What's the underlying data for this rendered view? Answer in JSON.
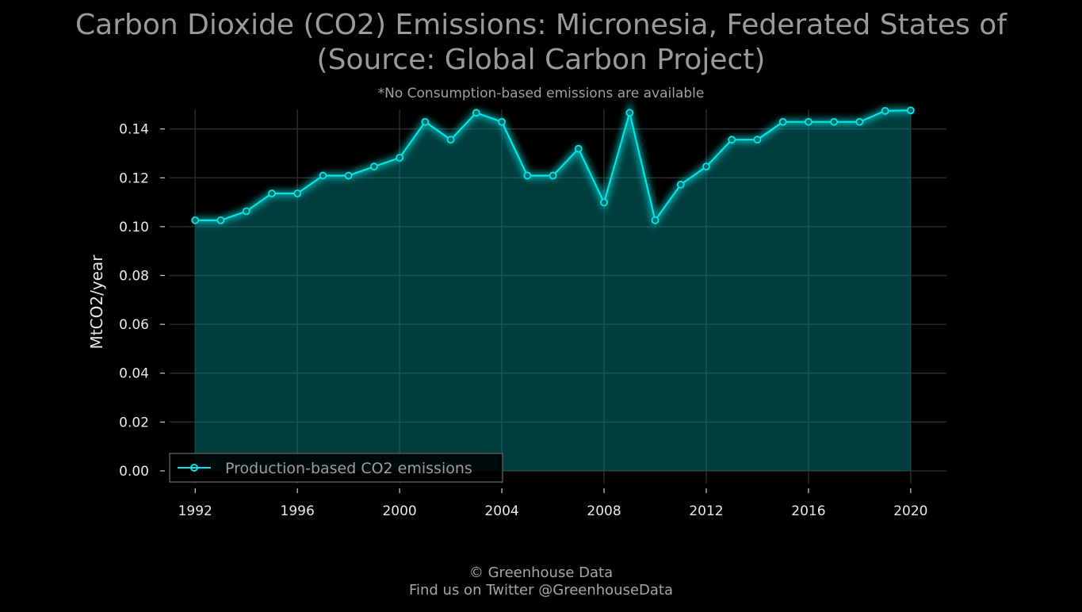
{
  "title_line1": "Carbon Dioxide (CO2) Emissions: Micronesia, Federated States of",
  "title_line2": "(Source: Global Carbon Project)",
  "subtitle": "*No Consumption-based emissions are available",
  "footer_line1": "© Greenhouse Data",
  "footer_line2": "Find us on Twitter @GreenhouseData",
  "colors": {
    "background": "#000000",
    "series": "#00e5e5",
    "fill": "#024040",
    "grid": "#2a2a2a"
  },
  "chart_data": {
    "type": "area",
    "ylabel": "MtCO2/year",
    "xlim": [
      1991,
      2021.4
    ],
    "ylim": [
      -0.0052,
      0.148
    ],
    "xticks": [
      1992,
      1996,
      2000,
      2004,
      2008,
      2012,
      2016,
      2020
    ],
    "yticks": [
      0.0,
      0.02,
      0.04,
      0.06,
      0.08,
      0.1,
      0.12,
      0.14
    ],
    "ytick_labels": [
      "0.00",
      "0.02",
      "0.04",
      "0.06",
      "0.08",
      "0.10",
      "0.12",
      "0.14"
    ],
    "grid": true,
    "legend_position": "bottom-left",
    "series": [
      {
        "name": "Production-based CO2 emissions",
        "x": [
          1992,
          1993,
          1994,
          1995,
          1996,
          1997,
          1998,
          1999,
          2000,
          2001,
          2002,
          2003,
          2004,
          2005,
          2006,
          2007,
          2008,
          2009,
          2010,
          2011,
          2012,
          2013,
          2014,
          2015,
          2016,
          2017,
          2018,
          2019,
          2020
        ],
        "y": [
          0.1026,
          0.1026,
          0.1063,
          0.1136,
          0.1136,
          0.1209,
          0.1209,
          0.1246,
          0.1282,
          0.1429,
          0.1356,
          0.1466,
          0.1429,
          0.1209,
          0.1209,
          0.1319,
          0.1099,
          0.1466,
          0.1026,
          0.1172,
          0.1246,
          0.1356,
          0.1356,
          0.1429,
          0.1429,
          0.1429,
          0.1429,
          0.1474,
          0.1476
        ]
      }
    ]
  }
}
